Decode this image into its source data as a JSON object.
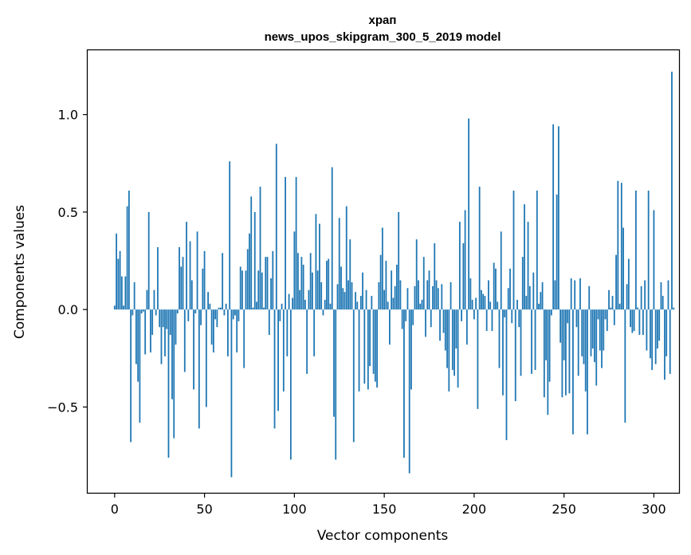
{
  "chart_data": {
    "type": "bar",
    "title": "храп",
    "subtitle": "news_upos_skipgram_300_5_2019 model",
    "xlabel": "Vector components",
    "ylabel": "Components values",
    "xlim": [
      -15,
      314
    ],
    "ylim": [
      -0.94,
      1.33
    ],
    "xticks": [
      0,
      50,
      100,
      150,
      200,
      250,
      300
    ],
    "yticks": [
      -0.5,
      0.0,
      0.5,
      1.0
    ],
    "ytick_labels": [
      "−0.5",
      "0.0",
      "0.5",
      "1.0"
    ],
    "grid": false,
    "bar_color": "#1f77b4",
    "series": [
      {
        "values": [
          0.02,
          0.39,
          0.26,
          0.3,
          0.17,
          0.02,
          0.17,
          0.53,
          0.61,
          -0.68,
          -0.03,
          0.14,
          -0.28,
          -0.37,
          -0.58,
          -0.02,
          -0.01,
          -0.23,
          0.1,
          0.5,
          -0.22,
          -0.13,
          0.1,
          -0.03,
          0.32,
          -0.09,
          -0.28,
          -0.09,
          -0.24,
          -0.1,
          -0.76,
          -0.13,
          -0.46,
          -0.66,
          -0.18,
          -0.02,
          0.32,
          0.22,
          0.27,
          -0.32,
          0.45,
          -0.06,
          0.35,
          0.15,
          -0.41,
          -0.02,
          0.4,
          -0.61,
          -0.08,
          0.21,
          0.3,
          -0.5,
          0.09,
          0.03,
          -0.18,
          -0.22,
          -0.05,
          -0.09,
          0.01,
          0.01,
          0.29,
          -0.03,
          0.03,
          -0.24,
          0.76,
          -0.86,
          -0.05,
          -0.03,
          -0.22,
          -0.06,
          0.22,
          0.2,
          -0.3,
          0.2,
          0.31,
          0.39,
          0.58,
          0.01,
          0.5,
          0.04,
          0.2,
          0.63,
          0.19,
          0.01,
          0.27,
          0.27,
          -0.13,
          0.16,
          0.3,
          -0.61,
          0.85,
          -0.52,
          -0.06,
          0.03,
          -0.42,
          0.68,
          -0.24,
          0.08,
          -0.77,
          0.06,
          0.4,
          0.68,
          0.29,
          0.1,
          0.27,
          0.23,
          0.05,
          -0.33,
          0.1,
          0.29,
          0.19,
          -0.24,
          0.49,
          0.2,
          0.44,
          0.14,
          -0.03,
          0.05,
          0.25,
          0.26,
          0.03,
          0.73,
          -0.55,
          -0.77,
          0.13,
          0.47,
          0.22,
          0.11,
          0.09,
          0.53,
          0.15,
          0.36,
          0.14,
          -0.68,
          0.09,
          0.04,
          -0.42,
          0.07,
          0.19,
          -0.38,
          0.1,
          -0.41,
          -0.29,
          0.07,
          -0.33,
          -0.37,
          -0.4,
          0.14,
          0.28,
          0.42,
          0.1,
          0.25,
          0.04,
          -0.18,
          0.2,
          0.06,
          0.12,
          0.23,
          0.5,
          0.15,
          -0.1,
          -0.76,
          -0.06,
          0.11,
          -0.84,
          -0.41,
          -0.08,
          0.12,
          0.36,
          0.15,
          0.03,
          0.05,
          0.27,
          -0.14,
          0.15,
          0.2,
          -0.09,
          0.12,
          0.34,
          0.15,
          0.11,
          -0.16,
          0.13,
          -0.12,
          -0.21,
          -0.3,
          -0.42,
          0.14,
          -0.31,
          -0.34,
          -0.2,
          -0.4,
          0.45,
          -0.06,
          0.34,
          0.51,
          -0.18,
          0.98,
          0.16,
          0.05,
          -0.05,
          0.06,
          -0.51,
          0.63,
          0.1,
          0.08,
          0.07,
          -0.11,
          0.15,
          0.04,
          -0.11,
          0.24,
          0.21,
          0.04,
          -0.3,
          0.4,
          -0.44,
          -0.04,
          -0.67,
          0.11,
          0.21,
          -0.07,
          0.61,
          -0.47,
          0.05,
          -0.09,
          -0.34,
          0.27,
          0.54,
          0.07,
          0.45,
          0.12,
          -0.33,
          0.19,
          -0.31,
          0.61,
          0.03,
          0.09,
          0.14,
          -0.45,
          -0.26,
          -0.54,
          -0.37,
          -0.03,
          0.95,
          0.15,
          0.59,
          0.94,
          -0.17,
          -0.45,
          -0.26,
          -0.44,
          -0.07,
          -0.43,
          0.16,
          -0.64,
          0.15,
          -0.09,
          -0.34,
          0.16,
          -0.24,
          -0.28,
          -0.42,
          -0.64,
          0.12,
          -0.24,
          -0.2,
          -0.27,
          -0.39,
          -0.05,
          -0.21,
          -0.3,
          -0.21,
          -0.05,
          -0.11,
          0.1,
          0.01,
          0.07,
          -0.08,
          0.28,
          0.66,
          0.03,
          0.65,
          0.42,
          -0.58,
          0.13,
          0.26,
          -0.09,
          -0.12,
          -0.11,
          0.61,
          0.01,
          -0.13,
          0.12,
          -0.13,
          0.15,
          -0.21,
          0.61,
          -0.25,
          -0.31,
          0.51,
          -0.28,
          -0.2,
          -0.16,
          0.14,
          0.07,
          -0.36,
          -0.24,
          0.15,
          -0.33,
          1.22,
          0.01
        ]
      }
    ]
  }
}
